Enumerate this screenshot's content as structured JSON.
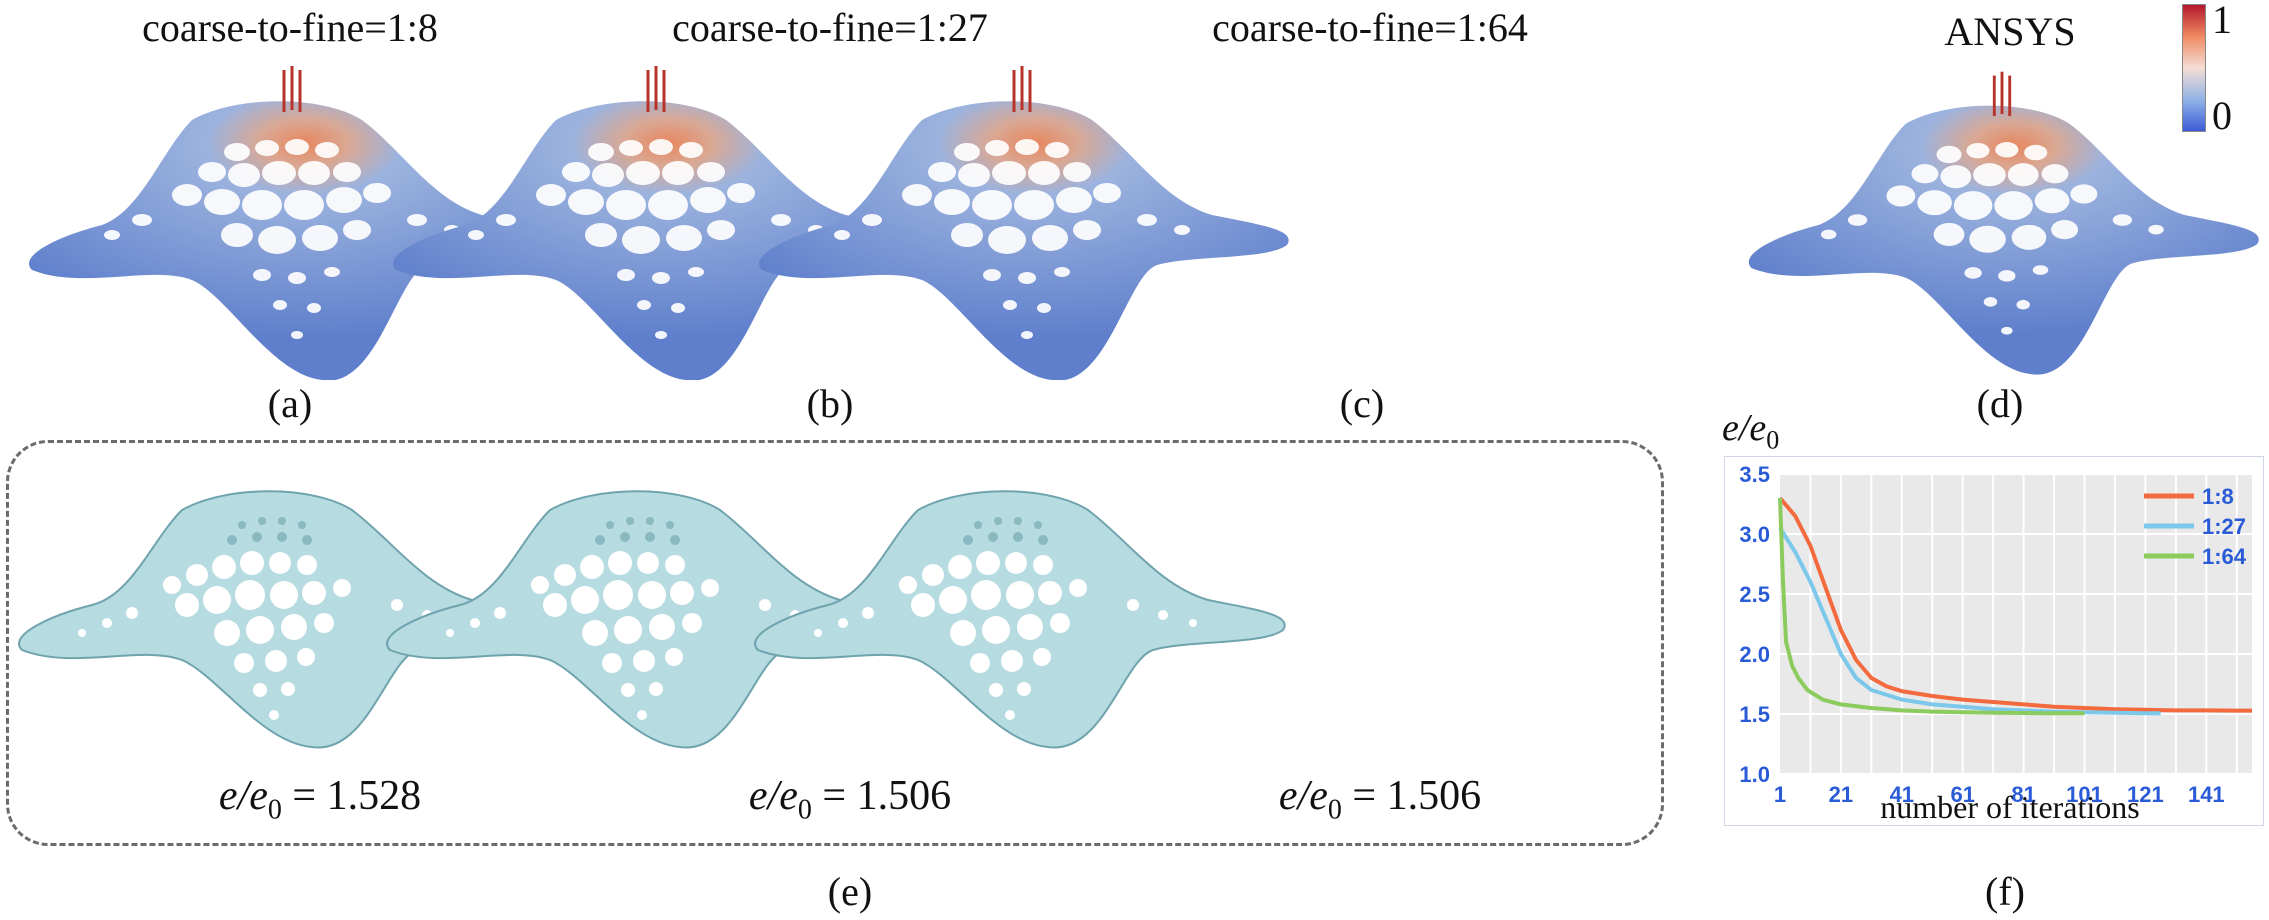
{
  "top_row": {
    "panels": [
      {
        "title": "coarse-to-fine=1:8",
        "label": "(a)"
      },
      {
        "title": "coarse-to-fine=1:27",
        "label": "(b)"
      },
      {
        "title": "coarse-to-fine=1:64",
        "label": "(c)"
      },
      {
        "title": "ANSYS",
        "label": "(d)"
      }
    ],
    "colorbar": {
      "max_label": "1",
      "min_label": "0",
      "colors": [
        "#b2182b",
        "#f4ddd4",
        "#3b5bd6"
      ]
    }
  },
  "bottom_row": {
    "results": [
      {
        "ratio_symbol": "e/e",
        "subscript": "0",
        "equals": " = ",
        "value": "1.528"
      },
      {
        "ratio_symbol": "e/e",
        "subscript": "0",
        "equals": " = ",
        "value": "1.506"
      },
      {
        "ratio_symbol": "e/e",
        "subscript": "0",
        "equals": " = ",
        "value": "1.506"
      }
    ],
    "label": "(e)"
  },
  "chart_label": "(f)",
  "chart_data": {
    "type": "line",
    "ylabel": "e/e0",
    "xlabel": "number of iterations",
    "xlim": [
      1,
      156
    ],
    "ylim": [
      1.0,
      3.5
    ],
    "x_ticks": [
      1,
      21,
      41,
      61,
      81,
      101,
      121,
      141
    ],
    "y_ticks": [
      1.0,
      1.5,
      2.0,
      2.5,
      3.0,
      3.5
    ],
    "y_tick_labels": [
      "1.0",
      "1.5",
      "2.0",
      "2.5",
      "3.0",
      "3.5"
    ],
    "grid": true,
    "legend": "top-right",
    "series": [
      {
        "name": "1:8",
        "color": "#f26a3d",
        "x": [
          1,
          6,
          11,
          16,
          21,
          26,
          31,
          36,
          41,
          51,
          61,
          71,
          81,
          91,
          101,
          111,
          121,
          131,
          141,
          151,
          156
        ],
        "y": [
          3.3,
          3.15,
          2.9,
          2.55,
          2.2,
          1.95,
          1.8,
          1.73,
          1.69,
          1.65,
          1.62,
          1.6,
          1.58,
          1.56,
          1.55,
          1.54,
          1.535,
          1.53,
          1.53,
          1.528,
          1.528
        ]
      },
      {
        "name": "1:27",
        "color": "#7cc8ea",
        "x": [
          1,
          6,
          11,
          16,
          21,
          26,
          31,
          41,
          51,
          61,
          71,
          81,
          91,
          101,
          111,
          121,
          126
        ],
        "y": [
          3.05,
          2.85,
          2.6,
          2.3,
          2.0,
          1.8,
          1.7,
          1.62,
          1.58,
          1.56,
          1.54,
          1.53,
          1.52,
          1.515,
          1.51,
          1.506,
          1.506
        ]
      },
      {
        "name": "1:64",
        "color": "#8ccb5e",
        "x": [
          1,
          2,
          3,
          5,
          7,
          10,
          15,
          21,
          31,
          41,
          51,
          61,
          71,
          81,
          91,
          101
        ],
        "y": [
          3.3,
          2.6,
          2.1,
          1.9,
          1.8,
          1.7,
          1.62,
          1.58,
          1.55,
          1.53,
          1.52,
          1.515,
          1.51,
          1.508,
          1.506,
          1.506
        ]
      }
    ]
  }
}
